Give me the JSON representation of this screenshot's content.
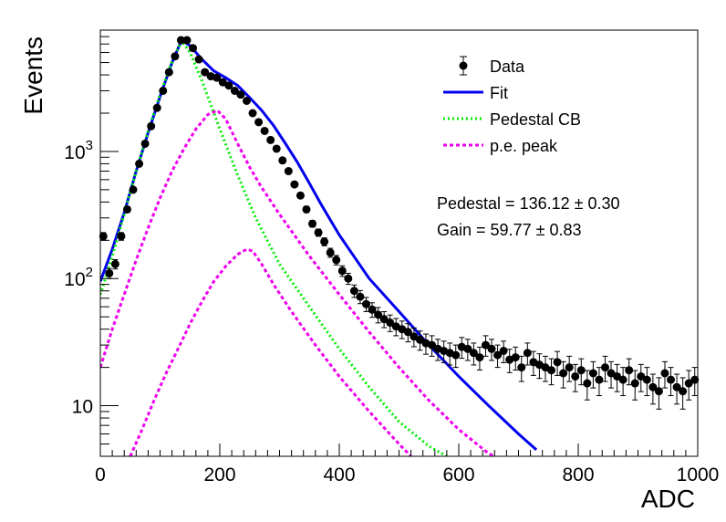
{
  "chart_data": {
    "type": "scatter",
    "xlabel": "ADC",
    "ylabel": "Events",
    "xlim": [
      0,
      1000
    ],
    "ylim": [
      4,
      9000
    ],
    "yscale": "log",
    "x_ticks": [
      0,
      200,
      400,
      600,
      800,
      1000
    ],
    "y_tick_labels": [
      {
        "value": 10,
        "base": "10",
        "exp": ""
      },
      {
        "value": 100,
        "base": "10",
        "exp": "2"
      },
      {
        "value": 1000,
        "base": "10",
        "exp": "3"
      }
    ],
    "legend": {
      "position": "top-right",
      "entries": [
        {
          "label": "Data",
          "style": "marker",
          "color": "#000000"
        },
        {
          "label": "Fit",
          "style": "solid",
          "color": "#0000ee"
        },
        {
          "label": "Pedestal CB",
          "style": "dotted",
          "color": "#00ee00"
        },
        {
          "label": "p.e. peak",
          "style": "dashed",
          "color": "#ee00ee"
        }
      ]
    },
    "annotations": [
      {
        "text": "Pedestal = 136.12",
        "pm": "±",
        "err": "0.30"
      },
      {
        "text": "Gain = 59.77",
        "pm": "±",
        "err": "0.83"
      }
    ],
    "series": [
      {
        "name": "Data",
        "color": "#000000",
        "x": [
          5,
          15,
          25,
          35,
          45,
          55,
          65,
          75,
          85,
          95,
          105,
          115,
          125,
          135,
          145,
          155,
          165,
          175,
          185,
          195,
          205,
          215,
          225,
          235,
          245,
          255,
          265,
          275,
          285,
          295,
          305,
          315,
          325,
          335,
          345,
          355,
          365,
          375,
          385,
          395,
          405,
          415,
          425,
          435,
          445,
          455,
          465,
          475,
          485,
          495,
          505,
          515,
          525,
          535,
          545,
          555,
          565,
          575,
          585,
          595,
          605,
          615,
          625,
          635,
          645,
          655,
          665,
          675,
          685,
          695,
          705,
          715,
          725,
          735,
          745,
          755,
          765,
          775,
          785,
          795,
          805,
          815,
          825,
          835,
          845,
          855,
          865,
          875,
          885,
          895,
          905,
          915,
          925,
          935,
          945,
          955,
          965,
          975,
          985,
          995
        ],
        "y": [
          215,
          110,
          130,
          215,
          350,
          500,
          800,
          1150,
          1580,
          2200,
          3000,
          4200,
          5600,
          7500,
          7500,
          6500,
          5300,
          4200,
          3900,
          3800,
          3500,
          3300,
          3000,
          2800,
          2500,
          2000,
          1700,
          1450,
          1230,
          1050,
          850,
          700,
          550,
          450,
          350,
          270,
          230,
          195,
          160,
          140,
          115,
          100,
          80,
          72,
          63,
          57,
          52,
          48,
          45,
          42,
          40,
          38,
          35,
          33,
          31,
          30,
          28,
          27,
          26,
          25,
          29,
          28,
          26,
          24,
          30,
          28,
          25,
          27,
          23,
          24,
          20,
          26,
          22,
          21,
          20,
          19,
          22,
          18,
          20,
          17,
          19,
          15,
          18,
          16,
          20,
          18,
          17,
          16,
          19,
          15,
          17,
          16,
          14,
          13,
          18,
          16,
          14,
          13,
          15,
          16
        ],
        "yerr": [
          15,
          10,
          11,
          15,
          19,
          22,
          28,
          34,
          40,
          47,
          55,
          65,
          75,
          87,
          87,
          81,
          73,
          65,
          62,
          62,
          59,
          57,
          55,
          53,
          50,
          45,
          41,
          38,
          35,
          32,
          29,
          26,
          23,
          21,
          19,
          16,
          15,
          14,
          13,
          12,
          11,
          10,
          9,
          8.5,
          8,
          7.5,
          7.2,
          6.9,
          6.7,
          6.5,
          6.3,
          6.2,
          5.9,
          5.7,
          5.6,
          5.5,
          5.3,
          5.2,
          5.1,
          5,
          5.4,
          5.3,
          5.1,
          4.9,
          5.5,
          5.3,
          5,
          5.2,
          4.8,
          4.9,
          4.5,
          5.1,
          4.7,
          4.6,
          4.5,
          4.4,
          4.7,
          4.2,
          4.5,
          4.1,
          4.4,
          3.9,
          4.2,
          4,
          4.5,
          4.2,
          4.1,
          4,
          4.4,
          3.9,
          4.1,
          4,
          3.7,
          3.6,
          4.2,
          4,
          3.7,
          3.6,
          3.9,
          4
        ]
      },
      {
        "name": "Fit",
        "color": "#0000ee",
        "x": [
          0,
          20,
          40,
          60,
          80,
          100,
          120,
          136,
          150,
          170,
          190,
          210,
          230,
          250,
          270,
          290,
          310,
          330,
          350,
          370,
          400,
          450,
          500,
          550,
          600,
          650,
          700,
          730
        ],
        "y": [
          95,
          170,
          330,
          700,
          1400,
          2700,
          5000,
          7500,
          6800,
          5300,
          4300,
          3800,
          3300,
          2650,
          2100,
          1600,
          1150,
          820,
          560,
          380,
          220,
          100,
          55,
          30,
          17,
          10,
          6,
          4.5
        ]
      },
      {
        "name": "Pedestal CB",
        "color": "#00ee00",
        "x": [
          0,
          20,
          40,
          60,
          80,
          100,
          120,
          136,
          150,
          170,
          200,
          230,
          260,
          300,
          350,
          400,
          450,
          500,
          550,
          580
        ],
        "y": [
          75,
          150,
          320,
          700,
          1450,
          2800,
          5100,
          7400,
          6000,
          3600,
          1500,
          650,
          300,
          130,
          60,
          28,
          14,
          7.5,
          4.8,
          4
        ]
      },
      {
        "name": "p.e. peak",
        "color": "#ee00ee",
        "x": [
          0,
          20,
          40,
          60,
          80,
          100,
          120,
          140,
          160,
          180,
          196,
          210,
          230,
          250,
          270,
          300,
          350,
          400,
          450,
          500,
          550,
          600,
          650,
          660
        ],
        "y": [
          20,
          40,
          75,
          140,
          250,
          430,
          700,
          1050,
          1500,
          1950,
          2100,
          1800,
          1150,
          750,
          520,
          320,
          150,
          75,
          38,
          20,
          11,
          6.5,
          4.2,
          4
        ]
      },
      {
        "name": "p.e. peak",
        "color": "#ee00ee",
        "x": [
          50,
          70,
          90,
          110,
          130,
          150,
          170,
          190,
          210,
          230,
          245,
          255,
          270,
          290,
          320,
          360,
          400,
          450,
          500,
          520
        ],
        "y": [
          4,
          6.5,
          11,
          18,
          28,
          44,
          66,
          95,
          125,
          155,
          170,
          165,
          130,
          90,
          55,
          30,
          17,
          9,
          5,
          4
        ]
      }
    ]
  }
}
